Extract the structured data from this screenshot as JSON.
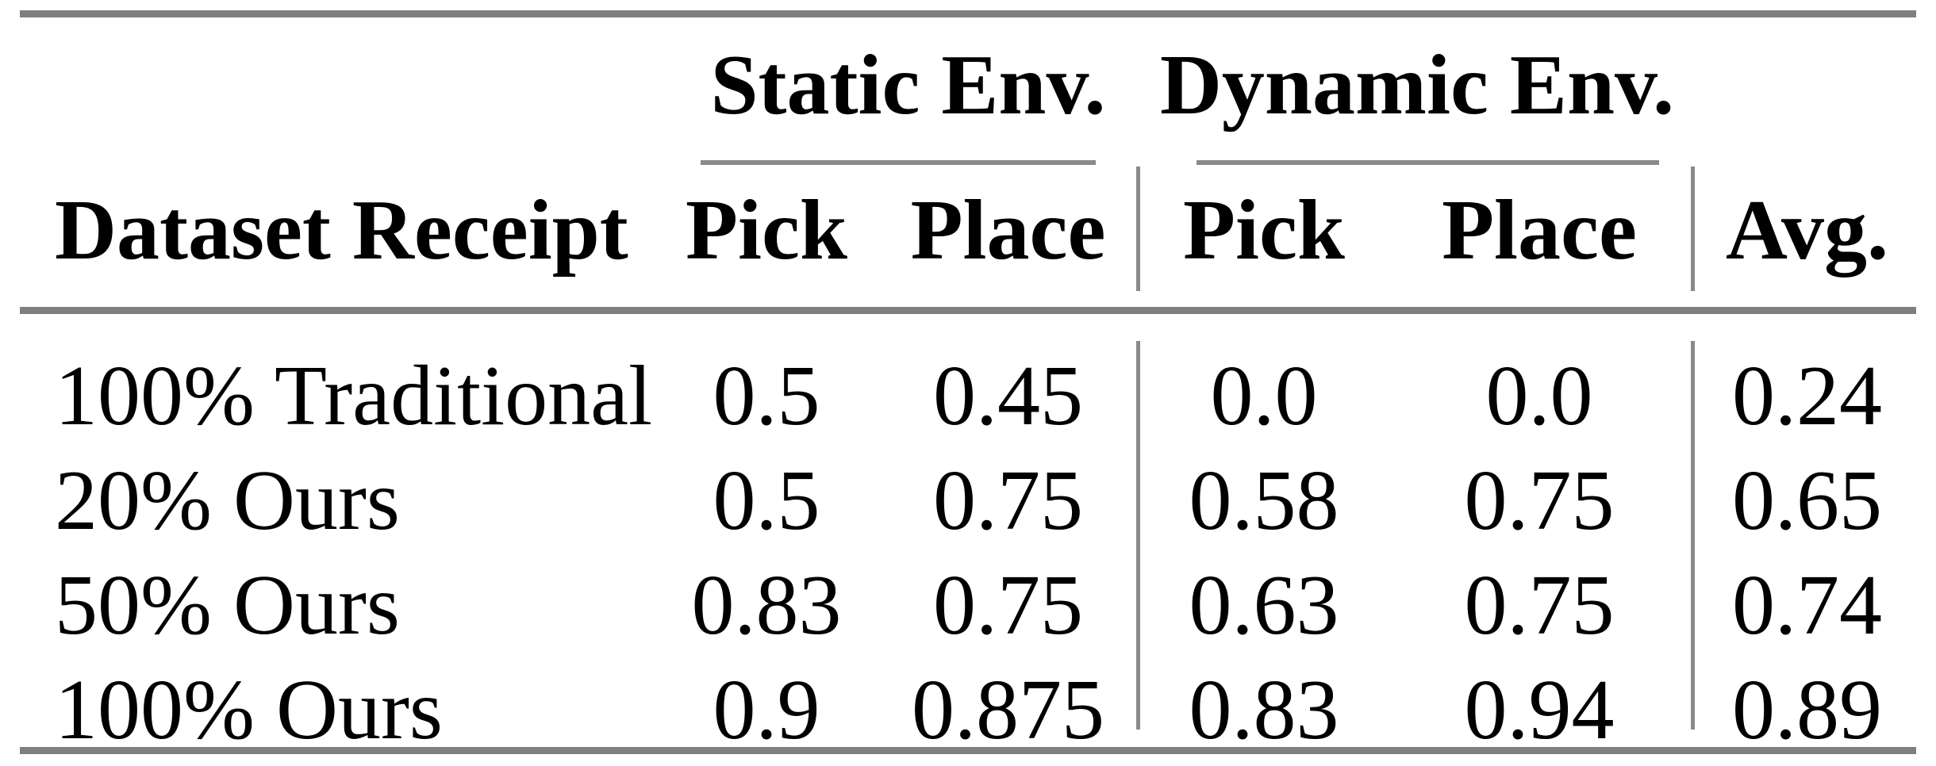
{
  "table": {
    "groups": [
      {
        "label": "Static Env."
      },
      {
        "label": "Dynamic Env."
      }
    ],
    "header": {
      "row_label": "Dataset Receipt",
      "static_pick": "Pick",
      "static_place": "Place",
      "dynamic_pick": "Pick",
      "dynamic_place": "Place",
      "avg": "Avg."
    },
    "rows": [
      {
        "label": "100% Traditional",
        "static_pick": "0.5",
        "static_place": "0.45",
        "dynamic_pick": "0.0",
        "dynamic_place": "0.0",
        "avg": "0.24"
      },
      {
        "label": "20% Ours",
        "static_pick": "0.5",
        "static_place": "0.75",
        "dynamic_pick": "0.58",
        "dynamic_place": "0.75",
        "avg": "0.65"
      },
      {
        "label": "50% Ours",
        "static_pick": "0.83",
        "static_place": "0.75",
        "dynamic_pick": "0.63",
        "dynamic_place": "0.75",
        "avg": "0.74"
      },
      {
        "label": "100% Ours",
        "static_pick": "0.9",
        "static_place": "0.875",
        "dynamic_pick": "0.83",
        "dynamic_place": "0.94",
        "avg": "0.89"
      }
    ],
    "colors": {
      "rule_gray": "#7f7f7f",
      "text": "#000000",
      "background": "#ffffff"
    }
  }
}
